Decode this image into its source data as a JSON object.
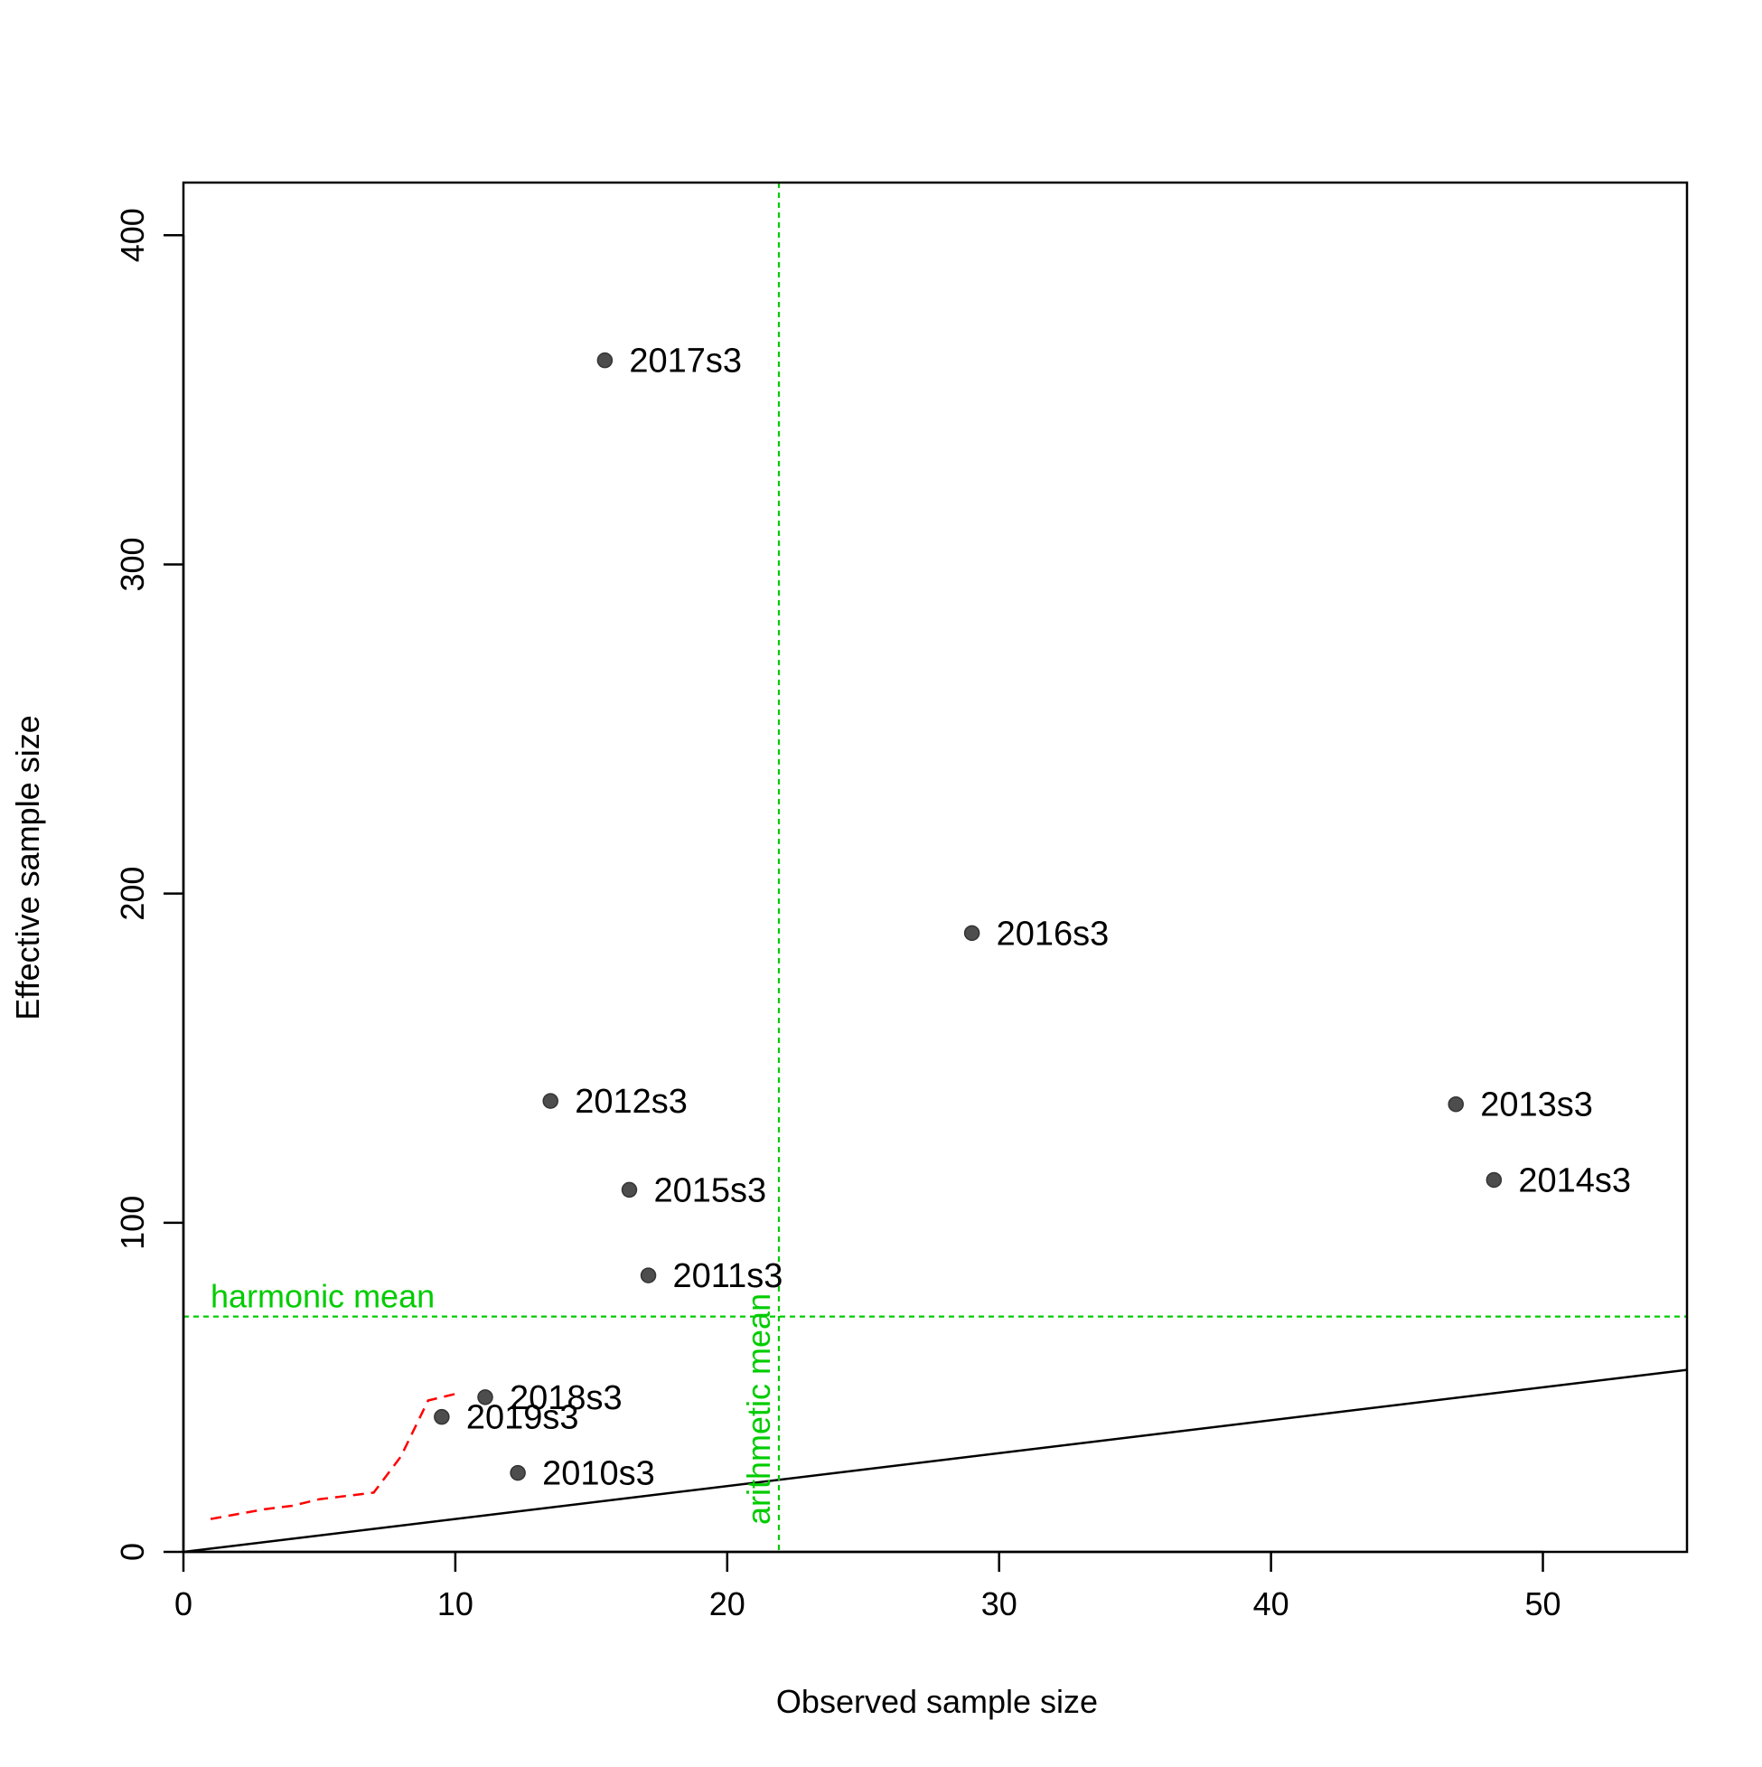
{
  "chart_data": {
    "type": "scatter",
    "title": "",
    "xlabel": "Observed sample size",
    "ylabel": "Effective sample size",
    "xlim": [
      0,
      55.3
    ],
    "ylim": [
      0,
      416
    ],
    "xticks": [
      0,
      10,
      20,
      30,
      40,
      50
    ],
    "yticks": [
      0,
      100,
      200,
      300,
      400
    ],
    "grid": false,
    "legend": "none",
    "points": [
      {
        "label": "2010s3",
        "x": 12.3,
        "y": 24
      },
      {
        "label": "2011s3",
        "x": 17.1,
        "y": 84
      },
      {
        "label": "2012s3",
        "x": 13.5,
        "y": 137
      },
      {
        "label": "2013s3",
        "x": 46.8,
        "y": 136
      },
      {
        "label": "2014s3",
        "x": 48.2,
        "y": 113
      },
      {
        "label": "2015s3",
        "x": 16.4,
        "y": 110
      },
      {
        "label": "2016s3",
        "x": 29.0,
        "y": 188
      },
      {
        "label": "2017s3",
        "x": 15.5,
        "y": 362
      },
      {
        "label": "2018s3",
        "x": 11.1,
        "y": 47
      },
      {
        "label": "2019s3",
        "x": 9.5,
        "y": 41
      }
    ],
    "one_to_one_line": {
      "slope": 1,
      "intercept": 0,
      "color": "#000000"
    },
    "harmonic_mean": {
      "label": "harmonic mean",
      "value": 71.5,
      "color": "#00CC00"
    },
    "arithmetic_mean": {
      "label": "arithmetic mean",
      "value": 21.9,
      "color": "#00CC00"
    },
    "smoother": {
      "color": "#FF0000",
      "x": [
        1,
        3,
        4,
        5,
        6,
        7,
        8,
        9,
        10
      ],
      "y": [
        10,
        13,
        14,
        16,
        17,
        18,
        29,
        46,
        48
      ]
    },
    "point_color": "#4D4D4D"
  }
}
